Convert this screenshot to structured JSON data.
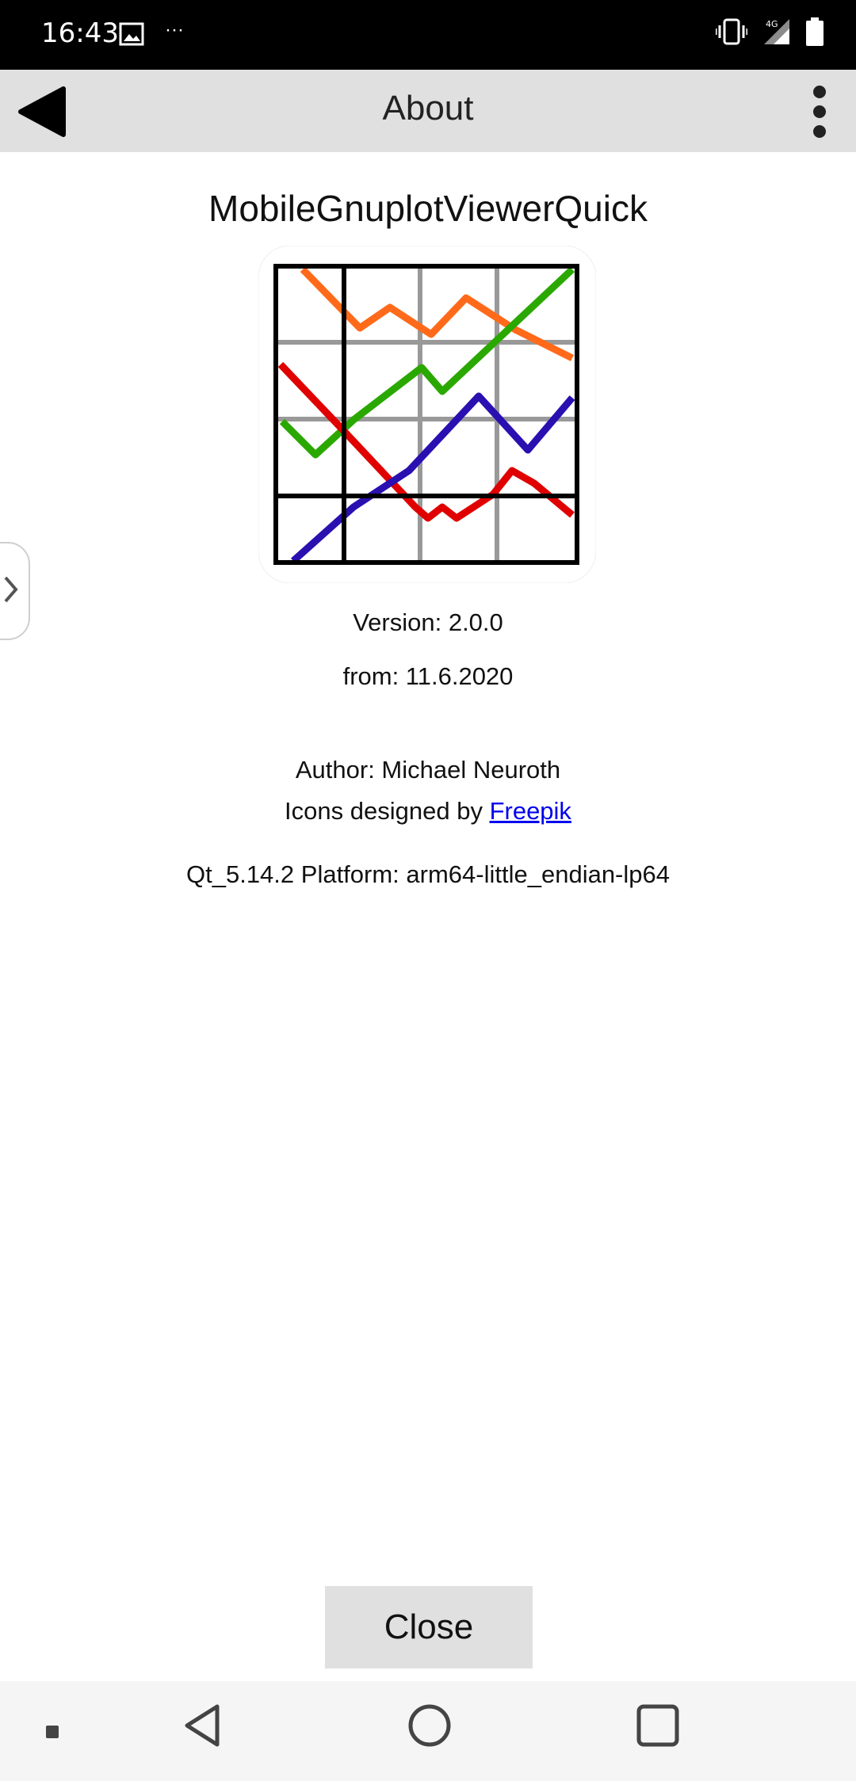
{
  "status_bar": {
    "time": "16:43",
    "more": "···",
    "network": "4G",
    "icons": [
      "gallery-icon",
      "vibrate-icon",
      "signal-icon",
      "battery-icon"
    ]
  },
  "app_bar": {
    "title": "About",
    "back_icon": "back-arrow-icon",
    "menu_icon": "more-vert-icon"
  },
  "about": {
    "app_name": "MobileGnuplotViewerQuick",
    "logo_icon": "gnuplot-chart-logo",
    "version": "Version: 2.0.0",
    "date": "from: 11.6.2020",
    "author": "Author: Michael Neuroth",
    "icons_credit_prefix": "Icons designed by ",
    "icons_credit_link": "Freepik",
    "platform": "Qt_5.14.2 Platform: arm64-little_endian-lp64"
  },
  "buttons": {
    "close": "Close"
  },
  "nav_bar": {
    "items": [
      "dot-icon",
      "back-triangle-icon",
      "home-circle-icon",
      "recents-square-icon"
    ]
  },
  "colors": {
    "status_bar": "#000000",
    "app_bar": "#e0e0e0",
    "link": "#0000ee",
    "button": "#e0e0e0",
    "logo_orange": "#ff6a1a",
    "logo_green": "#2aa800",
    "logo_red": "#e00000",
    "logo_blue": "#2a10b0"
  }
}
